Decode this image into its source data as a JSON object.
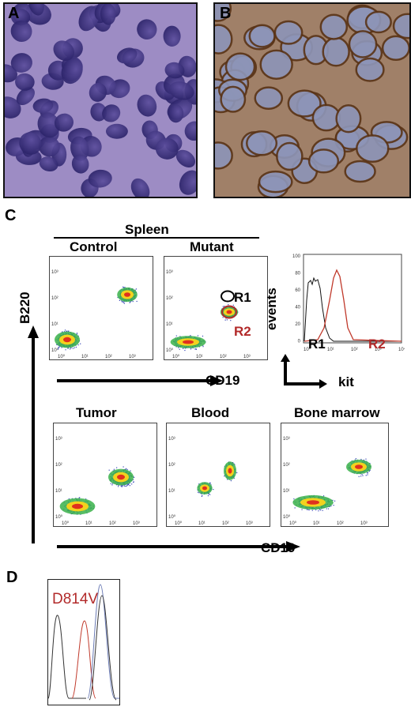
{
  "panels": {
    "a": "A",
    "b": "B",
    "c": "C",
    "d": "D"
  },
  "colors": {
    "he_stain": "#6a4aa0",
    "ihc_brown": "#8a5a32",
    "trace_red": "#c0392b",
    "label_red": "#b22a2a"
  },
  "flow": {
    "group_label": "Spleen",
    "control_label": "Control",
    "mutant_label": "Mutant",
    "gate_r1": "R1",
    "gate_r2": "R2",
    "x_axis_label": "CD19",
    "y_axis_label": "B220",
    "tumor_label": "Tumor",
    "blood_label": "Blood",
    "bone_marrow_label": "Bone marrow",
    "tick_labels": [
      "10⁰",
      "10¹",
      "10²",
      "10³"
    ]
  },
  "histogram": {
    "y_label": "events",
    "x_label": "kit",
    "y_ticks": [
      "100",
      "80",
      "60",
      "40",
      "20",
      "0"
    ],
    "x_ticks": [
      "10⁰",
      "10¹",
      "10²",
      "10³",
      "10⁴"
    ],
    "r1_label": "R1",
    "r2_label": "R2"
  },
  "sequence": {
    "mutation_label": "D814V"
  }
}
